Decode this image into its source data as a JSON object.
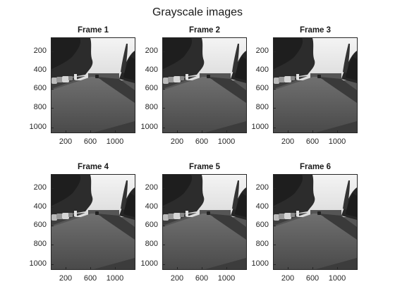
{
  "figure": {
    "title": "Grayscale images"
  },
  "axes": {
    "yticks": [
      "200",
      "400",
      "600",
      "800",
      "1000"
    ],
    "xticks": [
      "200",
      "600",
      "1000"
    ]
  },
  "frames": [
    {
      "title": "Frame 1"
    },
    {
      "title": "Frame 2"
    },
    {
      "title": "Frame 3"
    },
    {
      "title": "Frame 4"
    },
    {
      "title": "Frame 5"
    },
    {
      "title": "Frame 6"
    }
  ]
}
